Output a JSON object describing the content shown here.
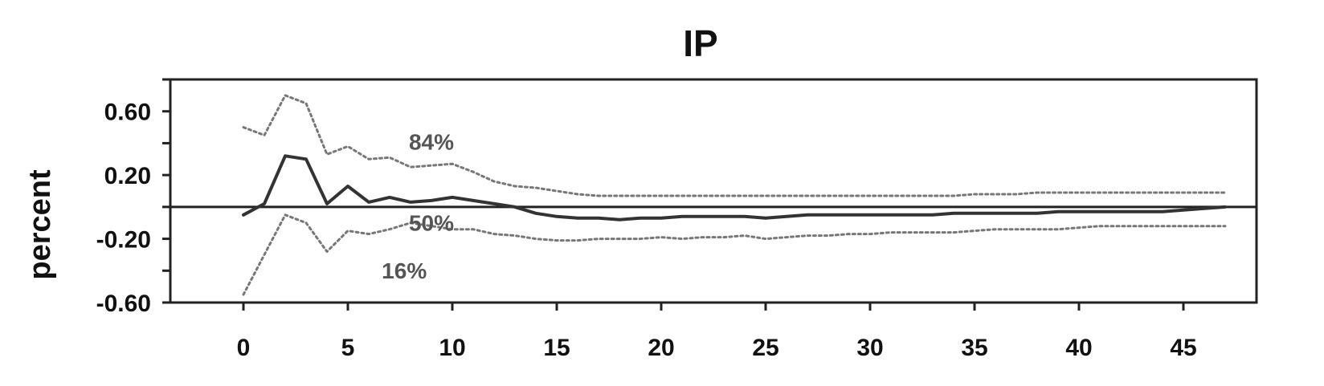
{
  "chart_data": {
    "type": "line",
    "title": "IP",
    "ylabel": "percent",
    "xlabel": "",
    "xlim": [
      -3.5,
      48.5
    ],
    "ylim": [
      -0.6,
      0.8
    ],
    "grid": false,
    "x_ticks": [
      0,
      5,
      10,
      15,
      20,
      25,
      30,
      35,
      40,
      45
    ],
    "x_tick_labels": [
      "0",
      "5",
      "10",
      "15",
      "20",
      "25",
      "30",
      "35",
      "40",
      "45"
    ],
    "y_ticks": [
      0.6,
      0.2,
      -0.2,
      -0.6
    ],
    "y_tick_labels": [
      "0.60",
      "0.20",
      "-0.20",
      "-0.60"
    ],
    "y_minor_ticks": [
      0.8,
      0.4,
      0.0,
      -0.4
    ],
    "zero_line": 0,
    "x": [
      0,
      1,
      2,
      3,
      4,
      5,
      6,
      7,
      8,
      9,
      10,
      11,
      12,
      13,
      14,
      15,
      16,
      17,
      18,
      19,
      20,
      21,
      22,
      23,
      24,
      25,
      26,
      27,
      28,
      29,
      30,
      31,
      32,
      33,
      34,
      35,
      36,
      37,
      38,
      39,
      40,
      41,
      42,
      43,
      44,
      45,
      46,
      47
    ],
    "series": [
      {
        "key": "upper",
        "values": [
          0.5,
          0.45,
          0.7,
          0.65,
          0.33,
          0.38,
          0.3,
          0.31,
          0.25,
          0.26,
          0.27,
          0.22,
          0.16,
          0.13,
          0.12,
          0.1,
          0.08,
          0.07,
          0.07,
          0.07,
          0.07,
          0.07,
          0.07,
          0.07,
          0.07,
          0.07,
          0.07,
          0.07,
          0.07,
          0.07,
          0.07,
          0.07,
          0.07,
          0.07,
          0.07,
          0.08,
          0.08,
          0.08,
          0.09,
          0.09,
          0.09,
          0.09,
          0.09,
          0.09,
          0.09,
          0.09,
          0.09,
          0.09
        ],
        "style": "dotted",
        "color": "#777777"
      },
      {
        "key": "median",
        "values": [
          -0.05,
          0.02,
          0.32,
          0.3,
          0.02,
          0.13,
          0.03,
          0.06,
          0.03,
          0.04,
          0.06,
          0.04,
          0.02,
          0.0,
          -0.04,
          -0.06,
          -0.07,
          -0.07,
          -0.08,
          -0.07,
          -0.07,
          -0.06,
          -0.06,
          -0.06,
          -0.06,
          -0.07,
          -0.06,
          -0.05,
          -0.05,
          -0.05,
          -0.05,
          -0.05,
          -0.05,
          -0.05,
          -0.04,
          -0.04,
          -0.04,
          -0.04,
          -0.04,
          -0.03,
          -0.03,
          -0.03,
          -0.03,
          -0.03,
          -0.03,
          -0.02,
          -0.01,
          0.0
        ],
        "style": "solid",
        "color": "#333333"
      },
      {
        "key": "lower",
        "values": [
          -0.55,
          -0.3,
          -0.05,
          -0.1,
          -0.28,
          -0.15,
          -0.17,
          -0.14,
          -0.1,
          -0.12,
          -0.14,
          -0.14,
          -0.17,
          -0.18,
          -0.2,
          -0.21,
          -0.21,
          -0.2,
          -0.2,
          -0.2,
          -0.19,
          -0.2,
          -0.19,
          -0.19,
          -0.18,
          -0.2,
          -0.19,
          -0.18,
          -0.18,
          -0.17,
          -0.17,
          -0.16,
          -0.16,
          -0.16,
          -0.16,
          -0.15,
          -0.14,
          -0.14,
          -0.14,
          -0.14,
          -0.13,
          -0.12,
          -0.12,
          -0.12,
          -0.12,
          -0.12,
          -0.12,
          -0.12
        ],
        "style": "dotted",
        "color": "#777777"
      }
    ],
    "annotations": [
      {
        "text": "84%",
        "x": 9.0,
        "y": 0.36
      },
      {
        "text": "50%",
        "x": 9.0,
        "y": -0.15
      },
      {
        "text": "16%",
        "x": 7.7,
        "y": -0.45
      }
    ]
  }
}
